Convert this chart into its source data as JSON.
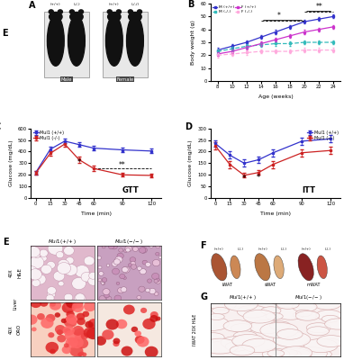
{
  "panel_B": {
    "age_weeks": [
      8,
      10,
      12,
      14,
      16,
      18,
      20,
      22,
      24
    ],
    "M_wt": [
      24,
      27,
      30,
      34,
      38,
      42,
      46,
      48,
      50
    ],
    "M_ko": [
      23,
      25,
      27,
      28,
      29,
      29,
      30,
      30,
      30
    ],
    "F_wt": [
      21,
      23,
      26,
      29,
      32,
      35,
      38,
      40,
      42
    ],
    "F_ko": [
      20,
      21,
      22,
      23,
      23,
      23,
      24,
      24,
      24
    ],
    "ylabel": "Body weight (g)",
    "xlabel": "Age (weeks)",
    "ylim": [
      0,
      60
    ],
    "c_M_wt": "#3333cc",
    "c_M_ko": "#33bbbb",
    "c_F_wt": "#cc33cc",
    "c_F_ko": "#ffaadd"
  },
  "panel_C": {
    "time_min": [
      0,
      15,
      30,
      45,
      60,
      90,
      120
    ],
    "wt": [
      220,
      420,
      490,
      460,
      430,
      415,
      405
    ],
    "ko": [
      215,
      385,
      465,
      330,
      255,
      200,
      195
    ],
    "wt_err": [
      15,
      20,
      20,
      20,
      20,
      20,
      20
    ],
    "ko_err": [
      15,
      20,
      20,
      25,
      25,
      15,
      15
    ],
    "ylabel": "Glucose (mg/dL)",
    "xlabel": "Time (min)",
    "ylim": [
      0,
      600
    ],
    "label": "GTT",
    "c_wt": "#3333cc",
    "c_ko": "#cc2222"
  },
  "panel_D": {
    "time_min": [
      0,
      15,
      30,
      45,
      60,
      90,
      120
    ],
    "wt": [
      235,
      185,
      150,
      165,
      195,
      245,
      255
    ],
    "ko": [
      225,
      145,
      98,
      110,
      145,
      195,
      205
    ],
    "wt_err": [
      15,
      15,
      15,
      15,
      15,
      15,
      15
    ],
    "ko_err": [
      15,
      15,
      10,
      10,
      15,
      15,
      15
    ],
    "ylabel": "Glucose (mg/dL)",
    "xlabel": "Time (min)",
    "ylim": [
      0,
      300
    ],
    "label": "ITT",
    "c_wt": "#3333cc",
    "c_ko": "#cc2222"
  },
  "bg_color": "#ffffff"
}
